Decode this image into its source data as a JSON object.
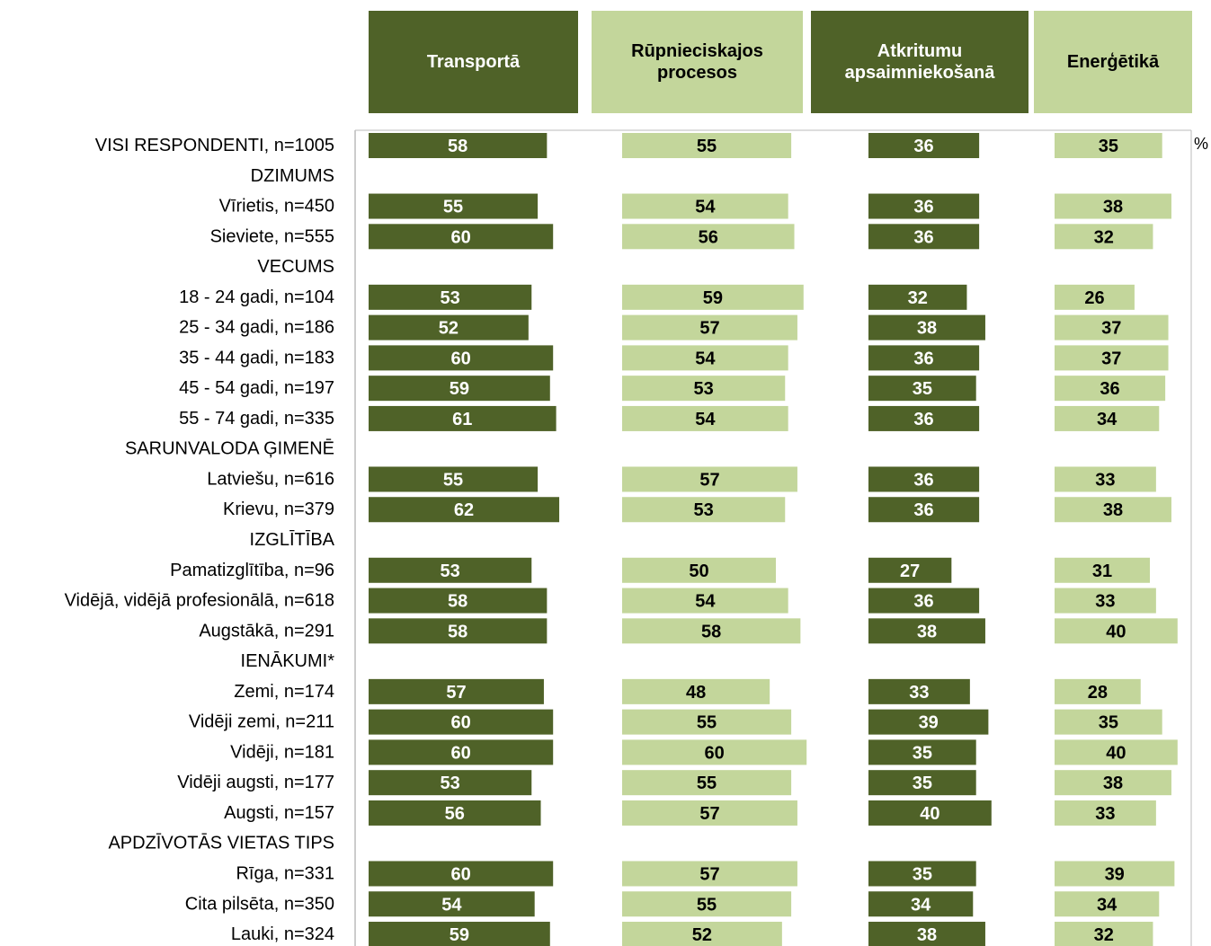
{
  "chart_data": {
    "type": "bar",
    "unit": "%",
    "categories": [
      "VISI RESPONDENTI, n=1005",
      "DZIMUMS",
      "Vīrietis, n=450",
      "Sieviete, n=555",
      "VECUMS",
      "18 - 24 gadi, n=104",
      "25 - 34 gadi, n=186",
      "35 - 44 gadi, n=183",
      "45 - 54 gadi, n=197",
      "55 - 74 gadi, n=335",
      "SARUNVALODA ĢIMENĒ",
      "Latviešu, n=616",
      "Krievu, n=379",
      "IZGLĪTĪBA",
      "Pamatizglītība, n=96",
      "Vidējā, vidējā profesionālā, n=618",
      "Augstākā, n=291",
      "IENĀKUMI*",
      "Zemi, n=174",
      "Vidēji zemi, n=211",
      "Vidēji, n=181",
      "Vidēji augsti, n=177",
      "Augsti, n=157",
      "APDZĪVOTĀS VIETAS TIPS",
      "Rīga, n=331",
      "Cita pilsēta, n=350",
      "Lauki, n=324"
    ],
    "series": [
      {
        "name": "Transportā",
        "color": "#4f6228",
        "values": [
          58,
          null,
          55,
          60,
          null,
          53,
          52,
          60,
          59,
          61,
          null,
          55,
          62,
          null,
          53,
          58,
          58,
          null,
          57,
          60,
          60,
          53,
          56,
          null,
          60,
          54,
          59
        ]
      },
      {
        "name": "Rūpnieciskajos procesos",
        "color": "#c3d69b",
        "values": [
          55,
          null,
          54,
          56,
          null,
          59,
          57,
          54,
          53,
          54,
          null,
          57,
          53,
          null,
          50,
          54,
          58,
          null,
          48,
          55,
          60,
          55,
          57,
          null,
          57,
          55,
          52
        ]
      },
      {
        "name": "Atkritumu apsaimniekošanā",
        "color": "#4f6228",
        "values": [
          36,
          null,
          36,
          36,
          null,
          32,
          38,
          36,
          35,
          36,
          null,
          36,
          36,
          null,
          27,
          36,
          38,
          null,
          33,
          39,
          35,
          35,
          40,
          null,
          35,
          34,
          38
        ]
      },
      {
        "name": "Enerģētikā",
        "color": "#c3d69b",
        "values": [
          35,
          null,
          38,
          32,
          null,
          26,
          37,
          37,
          36,
          34,
          null,
          33,
          38,
          null,
          31,
          33,
          40,
          null,
          28,
          35,
          40,
          38,
          33,
          null,
          39,
          34,
          32
        ]
      }
    ]
  }
}
